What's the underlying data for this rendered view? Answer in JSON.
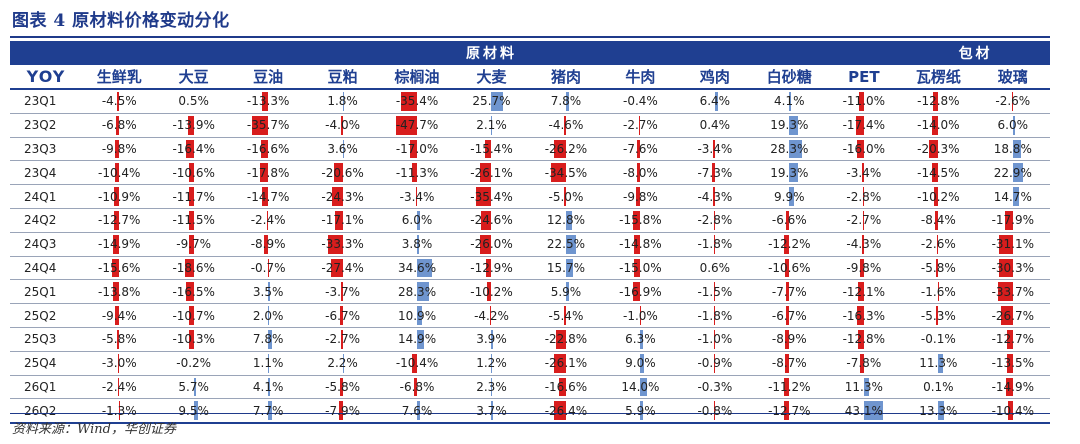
{
  "title": "图表 4    原材料价格变动分化",
  "source": "资料来源：Wind，华创证券",
  "colors": {
    "header_bg": "#1f3f91",
    "positive_bar": "#6f95cf",
    "negative_bar": "#d81d1d"
  },
  "chart_data": {
    "type": "table",
    "row_header": "YOY",
    "groups": [
      {
        "label": "原材料",
        "span": 11
      },
      {
        "label": "包材",
        "span": 2
      }
    ],
    "columns": [
      "生鲜乳",
      "大豆",
      "豆油",
      "豆粕",
      "棕榈油",
      "大麦",
      "猪肉",
      "牛肉",
      "鸡肉",
      "白砂糖",
      "PET",
      "瓦楞纸",
      "玻璃"
    ],
    "rows": [
      {
        "period": "23Q1",
        "values": [
          "-4.5%",
          "0.5%",
          "-13.3%",
          "1.8%",
          "-35.4%",
          "25.7%",
          "7.8%",
          "-0.4%",
          "6.4%",
          "4.1%",
          "-11.0%",
          "-12.8%",
          "-2.6%"
        ]
      },
      {
        "period": "23Q2",
        "values": [
          "-6.8%",
          "-13.9%",
          "-35.7%",
          "-4.0%",
          "-47.7%",
          "2.1%",
          "-4.6%",
          "-2.7%",
          "0.4%",
          "19.3%",
          "-17.4%",
          "-14.0%",
          "6.0%"
        ]
      },
      {
        "period": "23Q3",
        "values": [
          "-9.8%",
          "-16.4%",
          "-16.6%",
          "3.6%",
          "-17.0%",
          "-15.4%",
          "-26.2%",
          "-7.6%",
          "-3.4%",
          "28.3%",
          "-16.0%",
          "-20.3%",
          "18.8%"
        ]
      },
      {
        "period": "23Q4",
        "values": [
          "-10.4%",
          "-10.6%",
          "-17.8%",
          "-20.6%",
          "-11.3%",
          "-26.1%",
          "-34.5%",
          "-8.0%",
          "-7.3%",
          "19.3%",
          "-3.4%",
          "-14.5%",
          "22.9%"
        ]
      },
      {
        "period": "24Q1",
        "values": [
          "-10.9%",
          "-11.7%",
          "-14.7%",
          "-24.3%",
          "-3.4%",
          "-35.4%",
          "-5.0%",
          "-9.8%",
          "-4.3%",
          "9.9%",
          "-2.8%",
          "-10.2%",
          "14.7%"
        ]
      },
      {
        "period": "24Q2",
        "values": [
          "-12.7%",
          "-11.5%",
          "-2.4%",
          "-17.1%",
          "6.0%",
          "-24.6%",
          "12.8%",
          "-15.8%",
          "-2.8%",
          "-6.6%",
          "-2.7%",
          "-8.4%",
          "-17.9%"
        ]
      },
      {
        "period": "24Q3",
        "values": [
          "-14.9%",
          "-9.7%",
          "-8.9%",
          "-33.3%",
          "3.8%",
          "-26.0%",
          "22.5%",
          "-14.8%",
          "-1.8%",
          "-12.2%",
          "-4.3%",
          "-2.6%",
          "-31.1%"
        ]
      },
      {
        "period": "24Q4",
        "values": [
          "-15.6%",
          "-18.6%",
          "-0.7%",
          "-27.4%",
          "34.6%",
          "-12.9%",
          "15.7%",
          "-15.0%",
          "0.6%",
          "-10.6%",
          "-9.8%",
          "-5.8%",
          "-30.3%"
        ]
      },
      {
        "period": "25Q1",
        "values": [
          "-13.8%",
          "-16.5%",
          "3.5%",
          "-3.7%",
          "28.3%",
          "-10.2%",
          "5.9%",
          "-16.9%",
          "-1.5%",
          "-7.7%",
          "-12.1%",
          "-1.6%",
          "-33.7%"
        ]
      },
      {
        "period": "25Q2",
        "values": [
          "-9.4%",
          "-10.7%",
          "2.0%",
          "-6.7%",
          "10.9%",
          "-4.2%",
          "-5.4%",
          "-1.0%",
          "-1.8%",
          "-6.7%",
          "-16.3%",
          "-5.3%",
          "-26.7%"
        ]
      },
      {
        "period": "25Q3",
        "values": [
          "-5.8%",
          "-10.3%",
          "7.8%",
          "-2.7%",
          "14.9%",
          "3.9%",
          "-22.8%",
          "6.3%",
          "-1.0%",
          "-8.9%",
          "-12.8%",
          "-0.1%",
          "-12.7%"
        ]
      },
      {
        "period": "25Q4",
        "values": [
          "-3.0%",
          "-0.2%",
          "1.1%",
          "2.2%",
          "-10.4%",
          "1.2%",
          "-26.1%",
          "9.0%",
          "-0.9%",
          "-8.7%",
          "-7.8%",
          "11.3%",
          "-13.5%"
        ]
      },
      {
        "period": "26Q1",
        "values": [
          "-2.4%",
          "5.7%",
          "4.1%",
          "-5.8%",
          "-6.8%",
          "2.3%",
          "-16.6%",
          "14.0%",
          "-0.3%",
          "-11.2%",
          "11.3%",
          "0.1%",
          "-14.9%"
        ]
      },
      {
        "period": "26Q2",
        "values": [
          "-1.3%",
          "9.5%",
          "7.7%",
          "-7.9%",
          "7.6%",
          "3.7%",
          "-26.4%",
          "5.9%",
          "-0.8%",
          "-12.7%",
          "43.1%",
          "13.3%",
          "-10.4%"
        ]
      }
    ]
  }
}
